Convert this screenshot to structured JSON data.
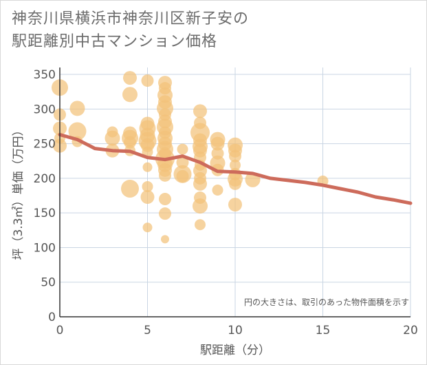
{
  "title": "神奈川県横浜市神奈川区新子安の\n駅距離別中古マンション価格",
  "chart_data": {
    "type": "scatter",
    "title": "神奈川県横浜市神奈川区新子安の駅距離別中古マンション価格",
    "xlabel": "駅距離（分）",
    "ylabel": "坪（3.3㎡）単価（万円）",
    "xlim": [
      0,
      20
    ],
    "ylim": [
      0,
      360
    ],
    "xticks": [
      0,
      5,
      10,
      15,
      20
    ],
    "yticks": [
      0,
      50,
      100,
      150,
      200,
      250,
      300,
      350
    ],
    "grid": true,
    "note": "円の大きさは、取引のあった物件面積を示す",
    "colors": {
      "bubble": "#f2c27a",
      "trend": "#cd6b5b",
      "grid": "#c9d5e3",
      "axis": "#333333"
    },
    "points": [
      {
        "x": 0,
        "y": 331,
        "s": 12
      },
      {
        "x": 0,
        "y": 292,
        "s": 9
      },
      {
        "x": 0,
        "y": 272,
        "s": 10
      },
      {
        "x": 0,
        "y": 258,
        "s": 8
      },
      {
        "x": 0,
        "y": 247,
        "s": 10
      },
      {
        "x": 1,
        "y": 301,
        "s": 11
      },
      {
        "x": 1,
        "y": 268,
        "s": 13
      },
      {
        "x": 1,
        "y": 253,
        "s": 8
      },
      {
        "x": 3,
        "y": 267,
        "s": 8
      },
      {
        "x": 3,
        "y": 258,
        "s": 11
      },
      {
        "x": 3,
        "y": 240,
        "s": 10
      },
      {
        "x": 4,
        "y": 345,
        "s": 10
      },
      {
        "x": 4,
        "y": 321,
        "s": 11
      },
      {
        "x": 4,
        "y": 265,
        "s": 10
      },
      {
        "x": 4,
        "y": 258,
        "s": 12
      },
      {
        "x": 4,
        "y": 252,
        "s": 9
      },
      {
        "x": 4,
        "y": 240,
        "s": 8
      },
      {
        "x": 4,
        "y": 185,
        "s": 13
      },
      {
        "x": 5,
        "y": 341,
        "s": 9
      },
      {
        "x": 5,
        "y": 279,
        "s": 10
      },
      {
        "x": 5,
        "y": 272,
        "s": 12
      },
      {
        "x": 5,
        "y": 262,
        "s": 11
      },
      {
        "x": 5,
        "y": 254,
        "s": 13
      },
      {
        "x": 5,
        "y": 248,
        "s": 10
      },
      {
        "x": 5,
        "y": 238,
        "s": 8
      },
      {
        "x": 5,
        "y": 216,
        "s": 7
      },
      {
        "x": 5,
        "y": 188,
        "s": 8
      },
      {
        "x": 5,
        "y": 173,
        "s": 10
      },
      {
        "x": 5,
        "y": 129,
        "s": 7
      },
      {
        "x": 6,
        "y": 338,
        "s": 10
      },
      {
        "x": 6,
        "y": 330,
        "s": 9
      },
      {
        "x": 6,
        "y": 320,
        "s": 11
      },
      {
        "x": 6,
        "y": 310,
        "s": 10
      },
      {
        "x": 6,
        "y": 301,
        "s": 12
      },
      {
        "x": 6,
        "y": 292,
        "s": 9
      },
      {
        "x": 6,
        "y": 282,
        "s": 10
      },
      {
        "x": 6,
        "y": 274,
        "s": 12
      },
      {
        "x": 6,
        "y": 266,
        "s": 9
      },
      {
        "x": 6,
        "y": 258,
        "s": 11
      },
      {
        "x": 6,
        "y": 250,
        "s": 10
      },
      {
        "x": 6,
        "y": 242,
        "s": 12
      },
      {
        "x": 6,
        "y": 236,
        "s": 9
      },
      {
        "x": 6,
        "y": 228,
        "s": 14
      },
      {
        "x": 6,
        "y": 220,
        "s": 11
      },
      {
        "x": 6,
        "y": 212,
        "s": 10
      },
      {
        "x": 6,
        "y": 204,
        "s": 9
      },
      {
        "x": 6,
        "y": 170,
        "s": 9
      },
      {
        "x": 6,
        "y": 149,
        "s": 9
      },
      {
        "x": 6,
        "y": 112,
        "s": 6
      },
      {
        "x": 7,
        "y": 242,
        "s": 8
      },
      {
        "x": 7,
        "y": 223,
        "s": 9
      },
      {
        "x": 7,
        "y": 206,
        "s": 13
      },
      {
        "x": 7,
        "y": 203,
        "s": 9
      },
      {
        "x": 8,
        "y": 297,
        "s": 10
      },
      {
        "x": 8,
        "y": 280,
        "s": 9
      },
      {
        "x": 8,
        "y": 266,
        "s": 14
      },
      {
        "x": 8,
        "y": 255,
        "s": 10
      },
      {
        "x": 8,
        "y": 246,
        "s": 11
      },
      {
        "x": 8,
        "y": 240,
        "s": 10
      },
      {
        "x": 8,
        "y": 230,
        "s": 9
      },
      {
        "x": 8,
        "y": 219,
        "s": 8
      },
      {
        "x": 8,
        "y": 211,
        "s": 10
      },
      {
        "x": 8,
        "y": 200,
        "s": 9
      },
      {
        "x": 8,
        "y": 192,
        "s": 10
      },
      {
        "x": 8,
        "y": 172,
        "s": 9
      },
      {
        "x": 8,
        "y": 160,
        "s": 11
      },
      {
        "x": 8,
        "y": 133,
        "s": 8
      },
      {
        "x": 9,
        "y": 256,
        "s": 11
      },
      {
        "x": 9,
        "y": 250,
        "s": 10
      },
      {
        "x": 9,
        "y": 236,
        "s": 9
      },
      {
        "x": 9,
        "y": 222,
        "s": 11
      },
      {
        "x": 9,
        "y": 212,
        "s": 9
      },
      {
        "x": 9,
        "y": 183,
        "s": 8
      },
      {
        "x": 10,
        "y": 248,
        "s": 11
      },
      {
        "x": 10,
        "y": 240,
        "s": 10
      },
      {
        "x": 10,
        "y": 232,
        "s": 9
      },
      {
        "x": 10,
        "y": 219,
        "s": 8
      },
      {
        "x": 10,
        "y": 206,
        "s": 9
      },
      {
        "x": 10,
        "y": 199,
        "s": 11
      },
      {
        "x": 10,
        "y": 192,
        "s": 9
      },
      {
        "x": 10,
        "y": 162,
        "s": 10
      },
      {
        "x": 11,
        "y": 198,
        "s": 11
      },
      {
        "x": 15,
        "y": 196,
        "s": 8
      }
    ],
    "trend": {
      "x": [
        0,
        1,
        2,
        3,
        4,
        5,
        6,
        7,
        8,
        9,
        10,
        11,
        12,
        13,
        14,
        15,
        16,
        17,
        18,
        19,
        20
      ],
      "y": [
        263,
        256,
        243,
        240,
        239,
        230,
        227,
        232,
        223,
        210,
        209,
        207,
        200,
        197,
        194,
        190,
        185,
        180,
        173,
        169,
        164
      ]
    }
  }
}
